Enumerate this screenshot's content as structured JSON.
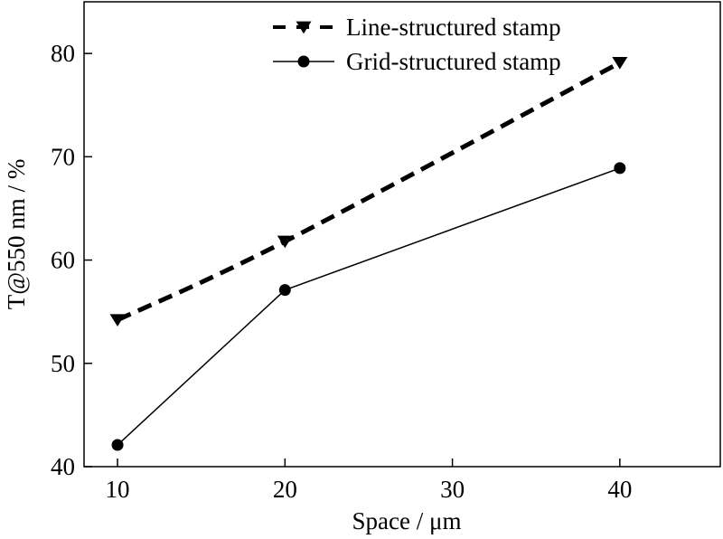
{
  "chart_data": {
    "type": "line",
    "title": "",
    "xlabel": "Space / μm",
    "ylabel": "T@550 nm / %",
    "xlim": [
      8,
      46
    ],
    "ylim": [
      40,
      85
    ],
    "xticks": [
      10,
      20,
      30,
      40
    ],
    "yticks": [
      40,
      50,
      60,
      70,
      80
    ],
    "grid": false,
    "legend_position": "top-right",
    "series": [
      {
        "name": "Line-structured stamp",
        "x": [
          10,
          20,
          40
        ],
        "y": [
          54.2,
          61.8,
          79.1
        ],
        "line_style": "dashed",
        "marker": "down-triangle",
        "smooth": true
      },
      {
        "name": "Grid-structured stamp",
        "x": [
          10,
          20,
          40
        ],
        "y": [
          42.1,
          57.1,
          68.9
        ],
        "line_style": "solid",
        "marker": "circle",
        "smooth": false
      }
    ],
    "colors": {
      "line": "#000000",
      "marker": "#000000"
    }
  }
}
